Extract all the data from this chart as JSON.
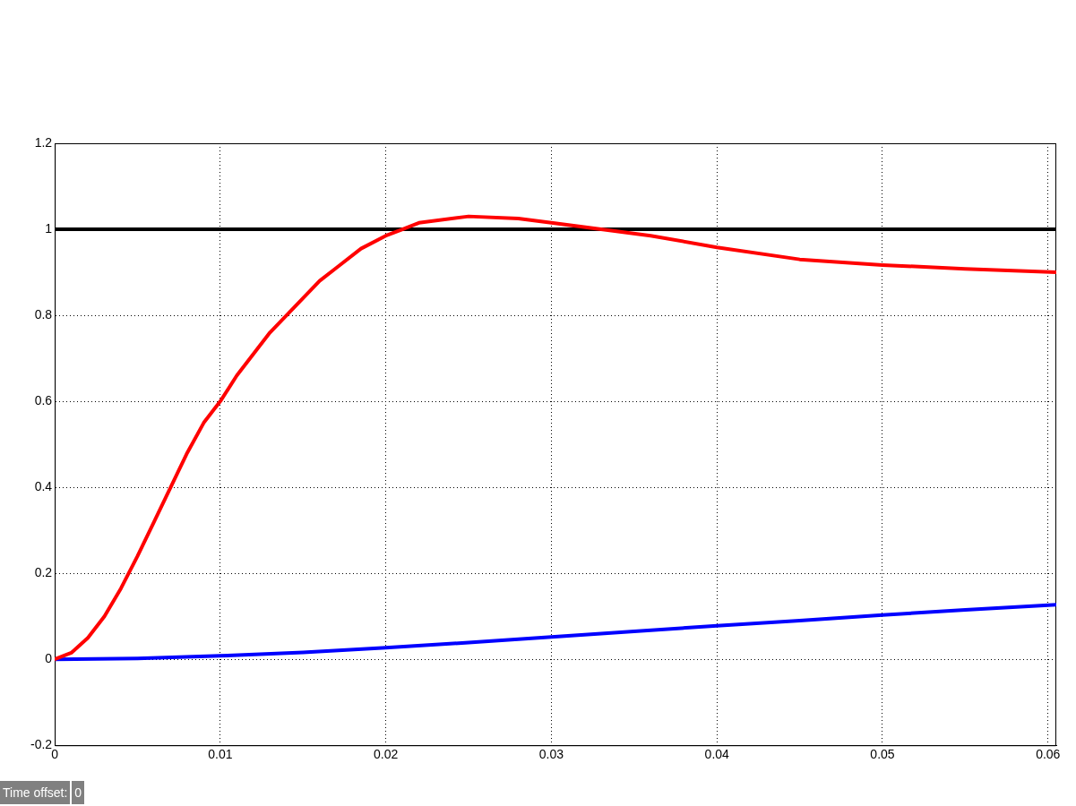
{
  "chart_data": {
    "type": "line",
    "xlim": [
      0,
      0.0605
    ],
    "ylim": [
      -0.2,
      1.2
    ],
    "xticks": [
      0,
      0.01,
      0.02,
      0.03,
      0.04,
      0.05,
      0.06
    ],
    "yticks": [
      -0.2,
      0,
      0.2,
      0.4,
      0.6,
      0.8,
      1,
      1.2
    ],
    "grid": true,
    "line_style": "solid",
    "marker": "none",
    "series": [
      {
        "color": "#ff0000",
        "x": [
          0,
          0.001,
          0.002,
          0.003,
          0.004,
          0.005,
          0.006,
          0.007,
          0.008,
          0.009,
          0.01,
          0.011,
          0.012,
          0.013,
          0.014,
          0.015,
          0.016,
          0.017,
          0.0185,
          0.02,
          0.021,
          0.022,
          0.025,
          0.028,
          0.03,
          0.033,
          0.036,
          0.04,
          0.045,
          0.05,
          0.055,
          0.0605
        ],
        "values": [
          0,
          0.015,
          0.05,
          0.1,
          0.165,
          0.24,
          0.32,
          0.4,
          0.48,
          0.55,
          0.6,
          0.66,
          0.71,
          0.76,
          0.8,
          0.84,
          0.88,
          0.91,
          0.955,
          0.985,
          1,
          1.015,
          1.03,
          1.025,
          1.015,
          1,
          0.985,
          0.958,
          0.93,
          0.917,
          0.908,
          0.9
        ]
      },
      {
        "color": "#0000ff",
        "x": [
          0,
          0.005,
          0.01,
          0.015,
          0.02,
          0.025,
          0.03,
          0.035,
          0.04,
          0.045,
          0.05,
          0.055,
          0.0605
        ],
        "values": [
          0,
          0.002,
          0.008,
          0.016,
          0.027,
          0.039,
          0.052,
          0.065,
          0.078,
          0.09,
          0.103,
          0.115,
          0.127
        ]
      }
    ],
    "ref_lines": [
      {
        "axis": "y",
        "value": 1,
        "color": "#000000",
        "line_style": "solid"
      }
    ],
    "annotations": [
      "Time offset:",
      "0"
    ]
  }
}
